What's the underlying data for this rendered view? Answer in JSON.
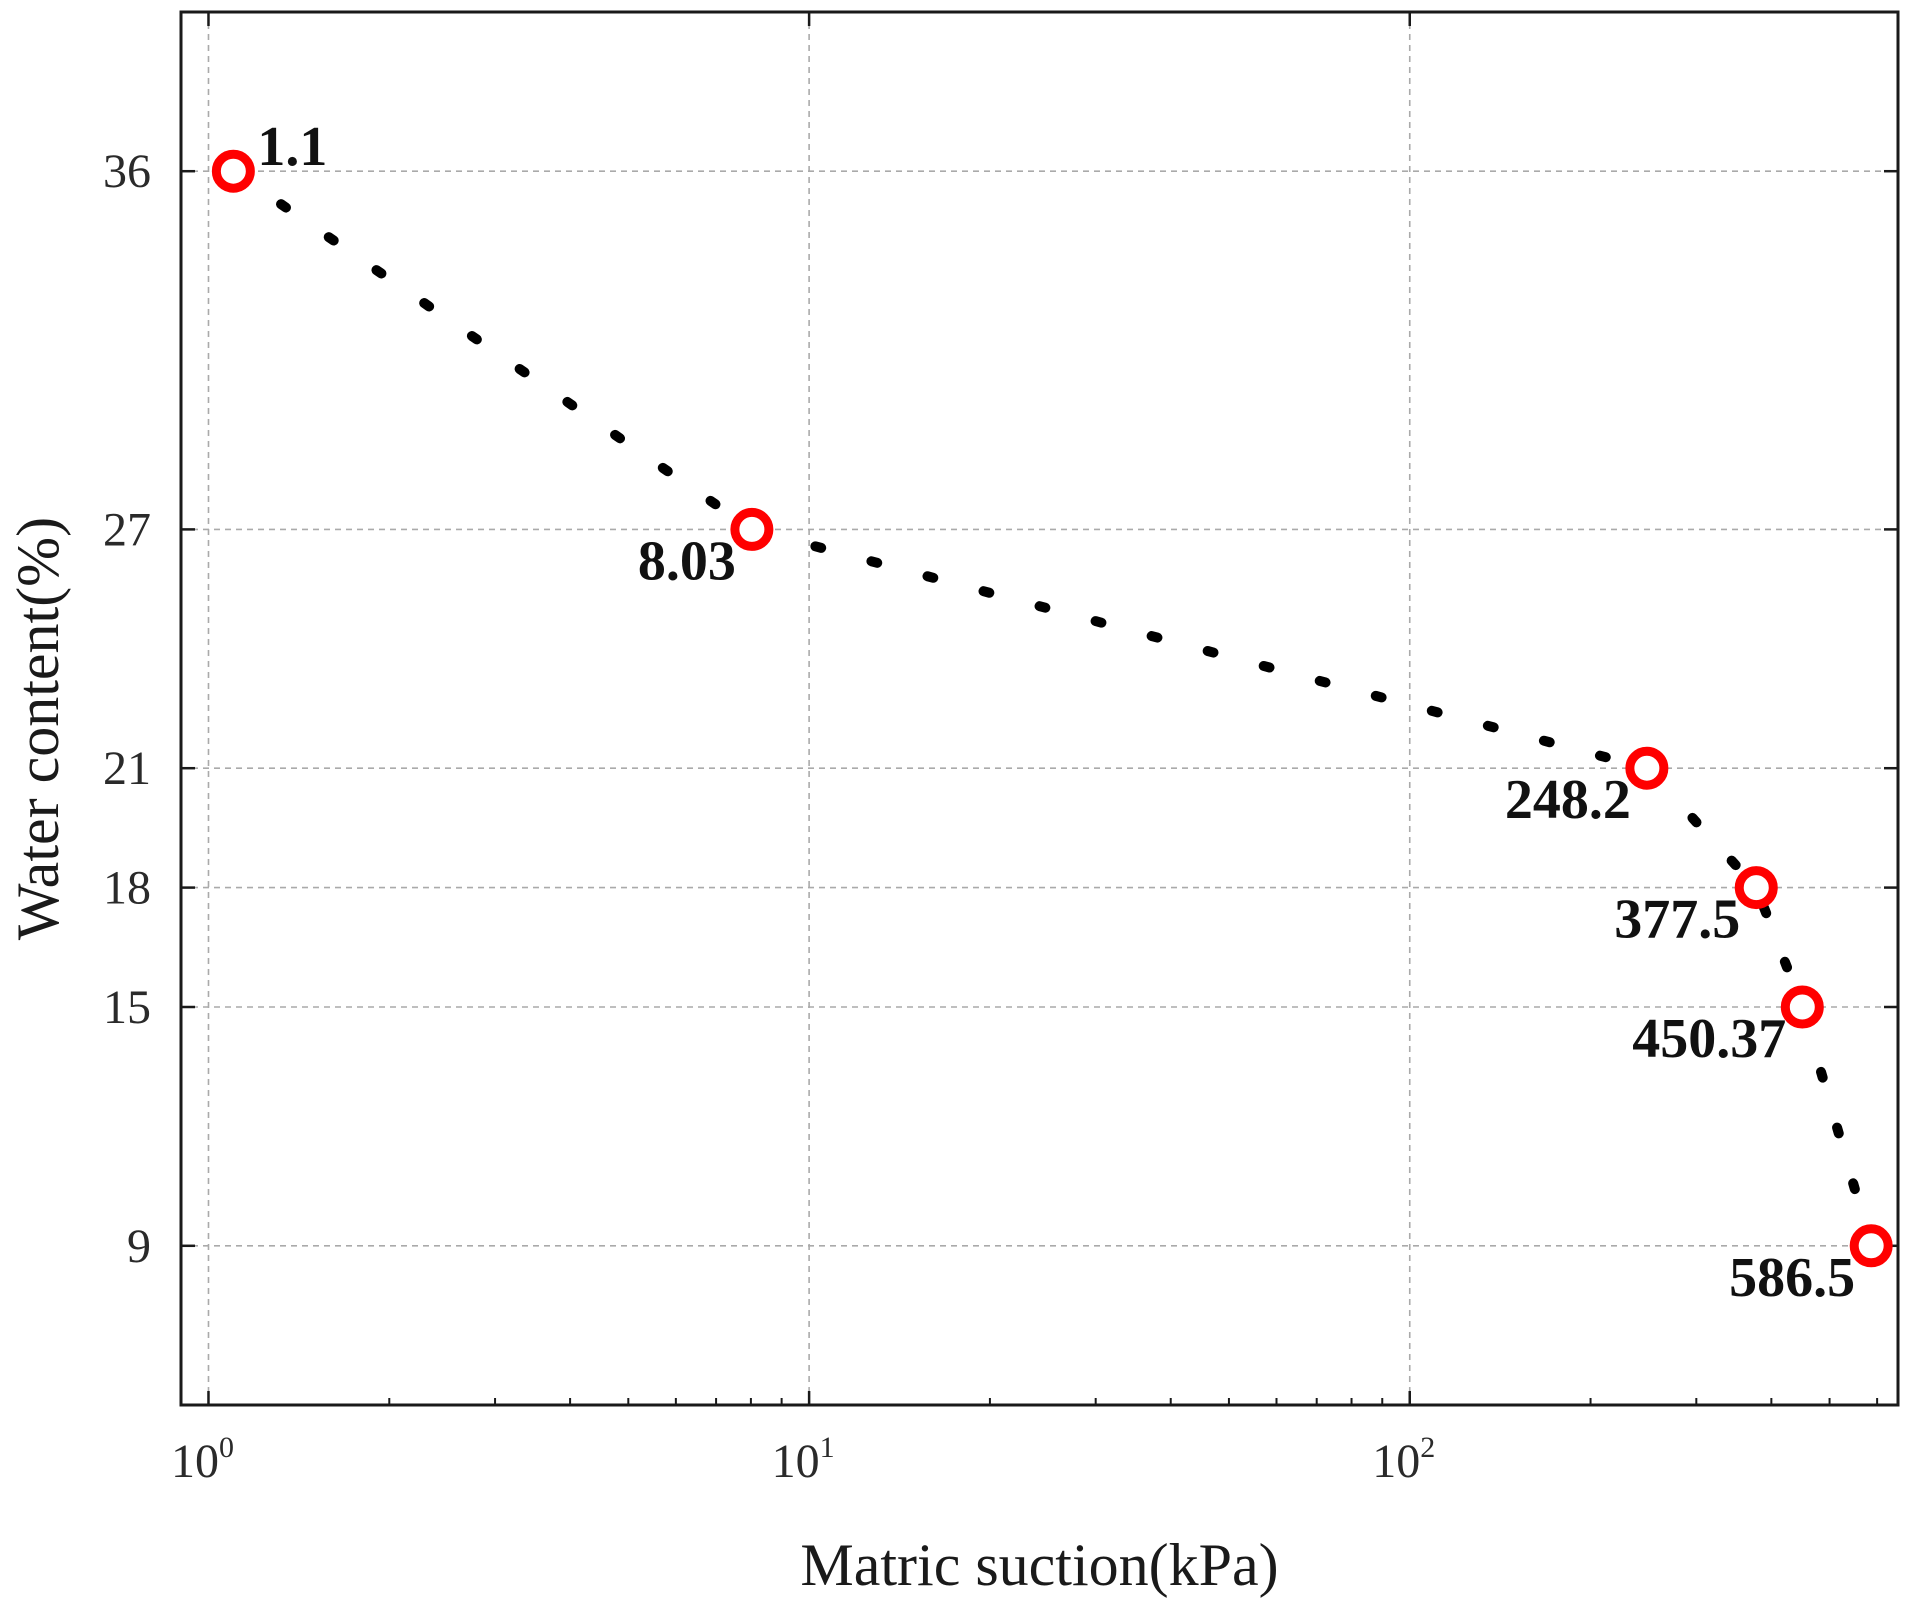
{
  "chart_data": {
    "type": "scatter",
    "xlabel": "Matric suction(kPa)",
    "ylabel": "Water content(%)",
    "x_scale": "log",
    "xlim": [
      0.9,
      650
    ],
    "ylim": [
      5,
      40
    ],
    "x_ticks": [
      {
        "value": 1,
        "base": "10",
        "exp": "0"
      },
      {
        "value": 10,
        "base": "10",
        "exp": "1"
      },
      {
        "value": 100,
        "base": "10",
        "exp": "2"
      }
    ],
    "y_ticks": [
      9,
      15,
      18,
      21,
      27,
      36
    ],
    "grid": true,
    "marker_color": "#ff0000",
    "trend_color": "#000000",
    "points": [
      {
        "x": 1.1,
        "y": 36,
        "label": "1.1",
        "label_pos": "upper-right"
      },
      {
        "x": 8.03,
        "y": 27,
        "label": "8.03",
        "label_pos": "lower-left"
      },
      {
        "x": 248.2,
        "y": 21,
        "label": "248.2",
        "label_pos": "lower-left"
      },
      {
        "x": 377.5,
        "y": 18,
        "label": "377.5",
        "label_pos": "lower-left"
      },
      {
        "x": 450.37,
        "y": 15,
        "label": "450.37",
        "label_pos": "lower-left"
      },
      {
        "x": 586.5,
        "y": 9,
        "label": "586.5",
        "label_pos": "lower-left"
      }
    ]
  }
}
